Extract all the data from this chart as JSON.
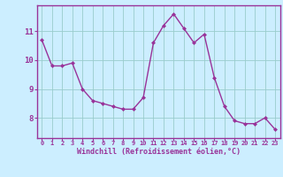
{
  "x": [
    0,
    1,
    2,
    3,
    4,
    5,
    6,
    7,
    8,
    9,
    10,
    11,
    12,
    13,
    14,
    15,
    16,
    17,
    18,
    19,
    20,
    21,
    22,
    23
  ],
  "y": [
    10.7,
    9.8,
    9.8,
    9.9,
    9.0,
    8.6,
    8.5,
    8.4,
    8.3,
    8.3,
    8.7,
    10.6,
    11.2,
    11.6,
    11.1,
    10.6,
    10.9,
    9.4,
    8.4,
    7.9,
    7.8,
    7.8,
    8.0,
    7.6
  ],
  "line_color": "#993399",
  "marker": "D",
  "marker_size": 2.0,
  "linewidth": 1.0,
  "bg_color": "#cceeff",
  "grid_color": "#99cccc",
  "xlabel": "Windchill (Refroidissement éolien,°C)",
  "xlabel_color": "#993399",
  "tick_color": "#993399",
  "spine_color": "#993399",
  "ylim": [
    7.3,
    11.9
  ],
  "yticks": [
    8,
    9,
    10,
    11
  ],
  "xticks": [
    0,
    1,
    2,
    3,
    4,
    5,
    6,
    7,
    8,
    9,
    10,
    11,
    12,
    13,
    14,
    15,
    16,
    17,
    18,
    19,
    20,
    21,
    22,
    23
  ],
  "xtick_labels": [
    "0",
    "1",
    "2",
    "3",
    "4",
    "5",
    "6",
    "7",
    "8",
    "9",
    "10",
    "11",
    "12",
    "13",
    "14",
    "15",
    "16",
    "17",
    "18",
    "19",
    "20",
    "21",
    "22",
    "23"
  ]
}
